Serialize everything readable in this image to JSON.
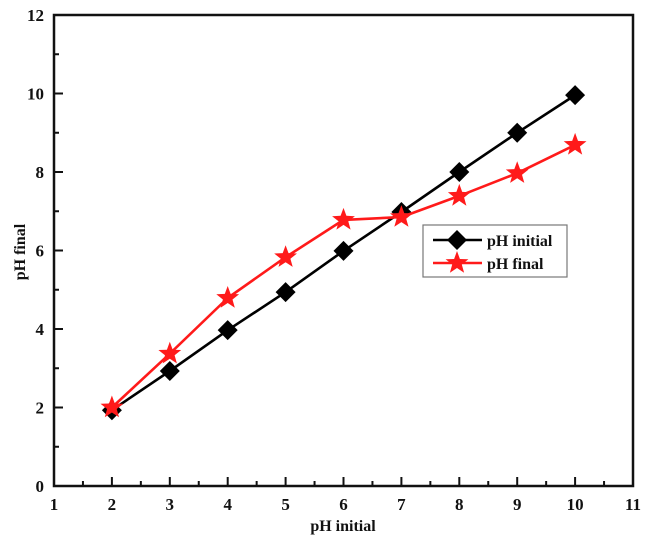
{
  "chart_data": {
    "type": "line",
    "title": "",
    "xlabel": "pH initial",
    "ylabel": "pH final",
    "xlim": [
      1,
      11
    ],
    "ylim": [
      0,
      12
    ],
    "x_ticks": [
      1,
      2,
      3,
      4,
      5,
      6,
      7,
      8,
      9,
      10,
      11
    ],
    "y_ticks": [
      0,
      2,
      4,
      6,
      8,
      10,
      12
    ],
    "grid": false,
    "legend_position": "center-right",
    "x": [
      2,
      3,
      4,
      5,
      6,
      7,
      8,
      9,
      10
    ],
    "series": [
      {
        "name": "pH initial",
        "color": "#000000",
        "marker": "diamond",
        "values": [
          1.93,
          2.93,
          3.97,
          4.94,
          5.99,
          6.98,
          8.0,
          9.0,
          9.96
        ]
      },
      {
        "name": "pH final",
        "color": "#ff1a1a",
        "marker": "star",
        "values": [
          2.0,
          3.37,
          4.79,
          5.83,
          6.78,
          6.85,
          7.39,
          7.97,
          8.69
        ]
      }
    ]
  }
}
